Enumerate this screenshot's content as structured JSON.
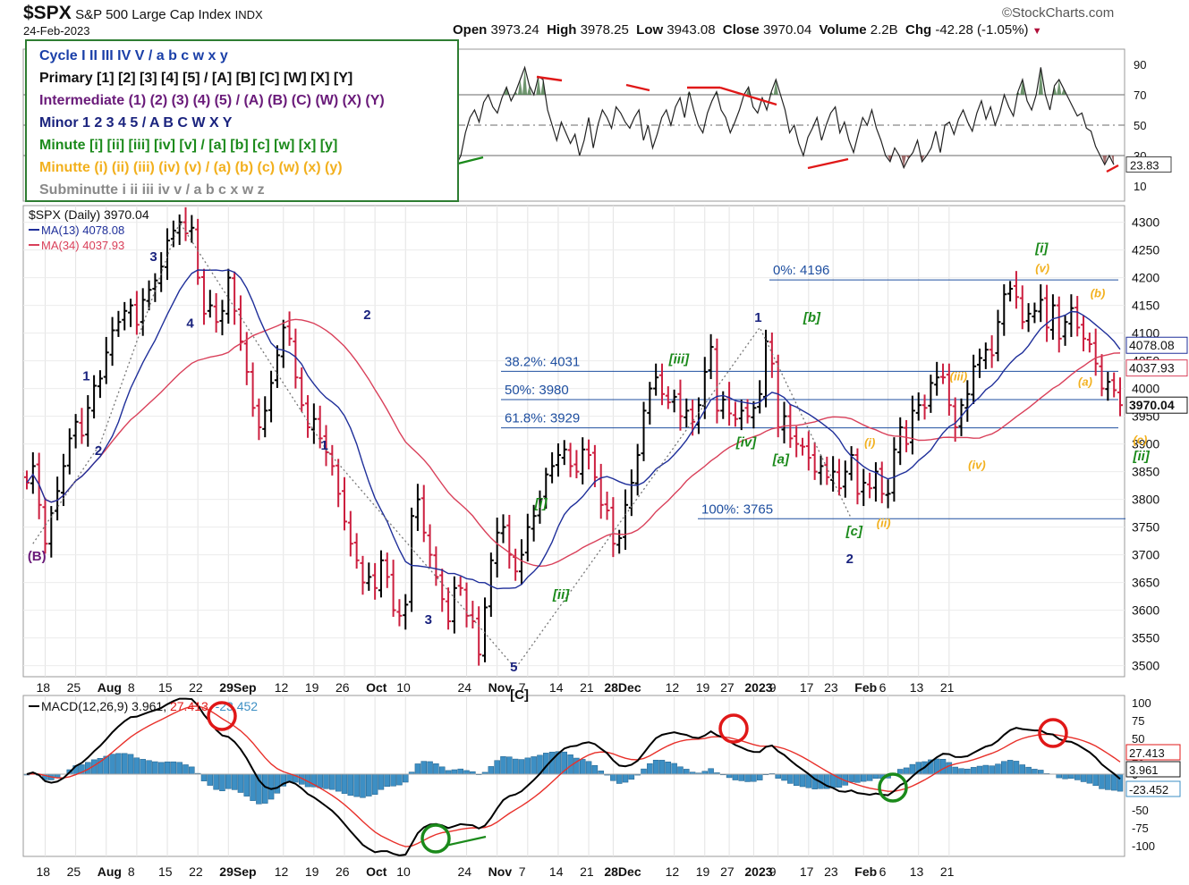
{
  "header": {
    "symbol": "$SPX",
    "name": "S&P 500 Large Cap Index",
    "exchange": "INDX",
    "date": "24-Feb-2023",
    "watermark": "©StockCharts.com",
    "open_label": "Open",
    "open": "3973.24",
    "high_label": "High",
    "high": "3978.25",
    "low_label": "Low",
    "low": "3943.08",
    "close_label": "Close",
    "close": "3970.04",
    "volume_label": "Volume",
    "volume": "2.2B",
    "chg_label": "Chg",
    "chg": "-42.28 (-1.05%)"
  },
  "legend": [
    {
      "text": "Cycle I II III IV V / a b c w x y",
      "color": "#1a3fa8"
    },
    {
      "text": "Primary [1] [2] [3] [4] [5] / [A] [B] [C] [W] [X] [Y]",
      "color": "#111111"
    },
    {
      "text": "Intermediate (1) (2) (3) (4) (5) / (A) (B) (C) (W) (X) (Y)",
      "color": "#6a1b7a"
    },
    {
      "text": "Minor 1 2 3 4 5 / A B C W X Y",
      "color": "#1a237e"
    },
    {
      "text": "Minute [i] [ii] [iii] [iv] [v] / [a] [b] [c] [w] [x] [y]",
      "color": "#1b8a1b"
    },
    {
      "text": "Minutte (i) (ii) (iii) (iv) (v) / (a) (b) (c) (w) (x) (y)",
      "color": "#f2b01e"
    },
    {
      "text": "Subminutte i ii iii iv v / a b c x w z",
      "color": "#8a8a8a"
    }
  ],
  "colors": {
    "up": "#000000",
    "down": "#cc1f3f",
    "ma13": "#1f2f9a",
    "ma34": "#d9405a",
    "rsi_fill_hi": "#4a7a4a",
    "rsi_fill_lo": "#8a4a4a",
    "macd": "#000000",
    "signal": "#e8302a",
    "hist": "#3d8fc4",
    "fib": "#1f4fa0"
  },
  "chart_data": [
    {
      "type": "line",
      "panel": "rsi",
      "ylim": [
        0,
        100
      ],
      "ticks": [
        10,
        30,
        50,
        70,
        90
      ],
      "ref_lines": [
        30,
        50,
        70
      ],
      "last_label": "23.83",
      "values": [
        24,
        30,
        45,
        55,
        60,
        52,
        65,
        70,
        62,
        58,
        68,
        75,
        66,
        72,
        80,
        88,
        76,
        70,
        82,
        80,
        60,
        50,
        40,
        52,
        45,
        38,
        44,
        30,
        40,
        55,
        35,
        50,
        60,
        55,
        48,
        62,
        58,
        52,
        48,
        55,
        60,
        40,
        50,
        35,
        44,
        55,
        60,
        50,
        62,
        68,
        55,
        72,
        60,
        50,
        45,
        58,
        66,
        72,
        60,
        55,
        45,
        52,
        60,
        70,
        75,
        62,
        58,
        68,
        60,
        72,
        80,
        70,
        60,
        45,
        50,
        38,
        30,
        42,
        48,
        55,
        40,
        50,
        58,
        62,
        45,
        52,
        40,
        32,
        44,
        55,
        50,
        60,
        48,
        40,
        30,
        26,
        35,
        30,
        22,
        28,
        32,
        40,
        26,
        30,
        35,
        46,
        32,
        50,
        52,
        44,
        54,
        60,
        52,
        46,
        58,
        66,
        54,
        62,
        50,
        58,
        70,
        62,
        56,
        72,
        80,
        66,
        60,
        70,
        88,
        70,
        60,
        76,
        80,
        74,
        68,
        62,
        56,
        58,
        48,
        46,
        36,
        30,
        24,
        30,
        24
      ]
    },
    {
      "type": "bar",
      "panel": "price",
      "title": "$SPX (Daily) 3970.04",
      "ylim": [
        3480,
        4330
      ],
      "yticks": [
        3500,
        3550,
        3600,
        3650,
        3700,
        3750,
        3800,
        3850,
        3900,
        3950,
        4000,
        4050,
        4100,
        4150,
        4200,
        4250,
        4300
      ],
      "xlabels": [
        {
          "label": "18",
          "i": 3
        },
        {
          "label": "25",
          "i": 8
        },
        {
          "label": "Aug",
          "i": 13
        },
        {
          "label": "8",
          "i": 18
        },
        {
          "label": "15",
          "i": 23
        },
        {
          "label": "22",
          "i": 28
        },
        {
          "label": "29Sep",
          "i": 33
        },
        {
          "label": "12",
          "i": 42
        },
        {
          "label": "19",
          "i": 47
        },
        {
          "label": "26",
          "i": 52
        },
        {
          "label": "Oct",
          "i": 57
        },
        {
          "label": "10",
          "i": 62
        },
        {
          "label": "24",
          "i": 72
        },
        {
          "label": "Nov",
          "i": 77
        },
        {
          "label": "7",
          "i": 82
        },
        {
          "label": "14",
          "i": 87
        },
        {
          "label": "21",
          "i": 92
        },
        {
          "label": "28Dec",
          "i": 96
        },
        {
          "label": "12",
          "i": 106
        },
        {
          "label": "19",
          "i": 111
        },
        {
          "label": "27",
          "i": 115
        },
        {
          "label": "2023",
          "i": 119
        },
        {
          "label": "9",
          "i": 123
        },
        {
          "label": "17",
          "i": 128
        },
        {
          "label": "23",
          "i": 132
        },
        {
          "label": "Feb",
          "i": 137
        },
        {
          "label": "6",
          "i": 141
        },
        {
          "label": "13",
          "i": 146
        },
        {
          "label": "21",
          "i": 151
        }
      ],
      "close": [
        3830,
        3860,
        3790,
        3720,
        3775,
        3815,
        3860,
        3910,
        3940,
        3915,
        3965,
        4005,
        4018,
        4065,
        4105,
        4120,
        4140,
        4150,
        4115,
        4160,
        4178,
        4195,
        4220,
        4267,
        4285,
        4300,
        4280,
        4290,
        4200,
        4135,
        4150,
        4120,
        4140,
        4200,
        4140,
        4085,
        4030,
        3965,
        3930,
        3960,
        4010,
        4060,
        4110,
        4090,
        4020,
        3970,
        3930,
        3945,
        3910,
        3885,
        3860,
        3810,
        3760,
        3720,
        3690,
        3650,
        3660,
        3640,
        3690,
        3660,
        3600,
        3590,
        3610,
        3770,
        3800,
        3740,
        3700,
        3660,
        3620,
        3580,
        3640,
        3640,
        3590,
        3580,
        3520,
        3605,
        3690,
        3740,
        3750,
        3700,
        3670,
        3700,
        3750,
        3770,
        3800,
        3845,
        3860,
        3880,
        3890,
        3860,
        3850,
        3890,
        3880,
        3840,
        3790,
        3780,
        3720,
        3730,
        3790,
        3830,
        3880,
        3960,
        4000,
        4020,
        3990,
        3975,
        3985,
        3950,
        3960,
        3940,
        3970,
        4030,
        4075,
        3960,
        3980,
        3955,
        3945,
        3960,
        3950,
        3965,
        3990,
        4085,
        4045,
        3930,
        3950,
        3910,
        3900,
        3895,
        3875,
        3850,
        3860,
        3840,
        3850,
        3820,
        3850,
        3880,
        3810,
        3830,
        3820,
        3850,
        3810,
        3810,
        3890,
        3930,
        3900,
        3960,
        3970,
        3965,
        4010,
        4020,
        4020,
        3970,
        3930,
        3970,
        3990,
        4040,
        4055,
        4070,
        4060,
        4120,
        4170,
        4180,
        4165,
        4120,
        4135,
        4140,
        4160,
        4110,
        4150,
        4090,
        4120,
        4145,
        4110,
        4090,
        4080,
        4045,
        4000,
        4012,
        3997,
        3970
      ],
      "ma13_label": "MA(13) 4078.08",
      "ma34_label": "MA(34) 4037.93",
      "last_labels": {
        "ma13": "4078.08",
        "ma34": "4037.93",
        "close": "3970.04"
      },
      "fib": [
        {
          "label": "0%: 4196",
          "value": 4196
        },
        {
          "label": "38.2%: 4031",
          "value": 4031
        },
        {
          "label": "50%: 3980",
          "value": 3980
        },
        {
          "label": "61.8%: 3929",
          "value": 3929
        },
        {
          "label": "100%: 3765",
          "value": 3765
        }
      ],
      "wave_labels": [
        {
          "text": "(B)",
          "i": 1,
          "v": 3690,
          "color": "#6a1b7a"
        },
        {
          "text": "1",
          "i": 10,
          "v": 4015,
          "color": "#1a237e"
        },
        {
          "text": "2",
          "i": 12,
          "v": 3880,
          "color": "#1a237e"
        },
        {
          "text": "3",
          "i": 21,
          "v": 4230,
          "color": "#1a237e"
        },
        {
          "text": "4",
          "i": 27,
          "v": 4110,
          "color": "#1a237e"
        },
        {
          "text": "2",
          "i": 56,
          "v": 4125,
          "color": "#1a237e"
        },
        {
          "text": "1",
          "i": 49,
          "v": 3890,
          "color": "#1a237e"
        },
        {
          "text": "3",
          "i": 66,
          "v": 3575,
          "color": "#1a237e"
        },
        {
          "text": "5",
          "i": 80,
          "v": 3490,
          "color": "#1a237e"
        },
        {
          "text": "[C]",
          "i": 80,
          "v": 3440,
          "color": "#111111"
        },
        {
          "text": "[i]",
          "i": 84,
          "v": 3785,
          "color": "#1b8a1b"
        },
        {
          "text": "[ii]",
          "i": 87,
          "v": 3620,
          "color": "#1b8a1b"
        },
        {
          "text": "[iii]",
          "i": 106,
          "v": 4045,
          "color": "#1b8a1b"
        },
        {
          "text": "[iv]",
          "i": 117,
          "v": 3895,
          "color": "#1b8a1b"
        },
        {
          "text": "1",
          "i": 120,
          "v": 4120,
          "color": "#1a237e"
        },
        {
          "text": "[a]",
          "i": 123,
          "v": 3865,
          "color": "#1b8a1b"
        },
        {
          "text": "[b]",
          "i": 128,
          "v": 4120,
          "color": "#1b8a1b"
        },
        {
          "text": "[c]",
          "i": 135,
          "v": 3735,
          "color": "#1b8a1b"
        },
        {
          "text": "2",
          "i": 135,
          "v": 3685,
          "color": "#1a237e"
        },
        {
          "text": "(i)",
          "i": 138,
          "v": 3895,
          "color": "#f2b01e"
        },
        {
          "text": "(ii)",
          "i": 140,
          "v": 3750,
          "color": "#f2b01e"
        },
        {
          "text": "(iii)",
          "i": 152,
          "v": 4015,
          "color": "#f2b01e"
        },
        {
          "text": "(iv)",
          "i": 155,
          "v": 3855,
          "color": "#f2b01e"
        },
        {
          "text": "[i]",
          "i": 166,
          "v": 4245,
          "color": "#1b8a1b"
        },
        {
          "text": "(v)",
          "i": 166,
          "v": 4210,
          "color": "#f2b01e"
        },
        {
          "text": "(b)",
          "i": 175,
          "v": 4165,
          "color": "#f2b01e"
        },
        {
          "text": "(a)",
          "i": 173,
          "v": 4005,
          "color": "#f2b01e"
        },
        {
          "text": "(c)",
          "i": 182,
          "v": 3900,
          "color": "#f2b01e"
        },
        {
          "text": "[ii]",
          "i": 182,
          "v": 3870,
          "color": "#1b8a1b"
        }
      ]
    },
    {
      "type": "line",
      "panel": "macd",
      "title": "MACD(12,26,9) 3.961, 27.413, -23.452",
      "title_parts": {
        "name": "MACD(12,26,9)",
        "macd": "3.961",
        "signal": "27.413",
        "hist": "-23.452"
      },
      "ylim": [
        -115,
        110
      ],
      "yticks": [
        100,
        75,
        50,
        25,
        0,
        -25,
        -50,
        -75,
        -100
      ],
      "last_labels": {
        "signal": "27.413",
        "macd": "3.961",
        "hist": "-23.452"
      }
    }
  ]
}
